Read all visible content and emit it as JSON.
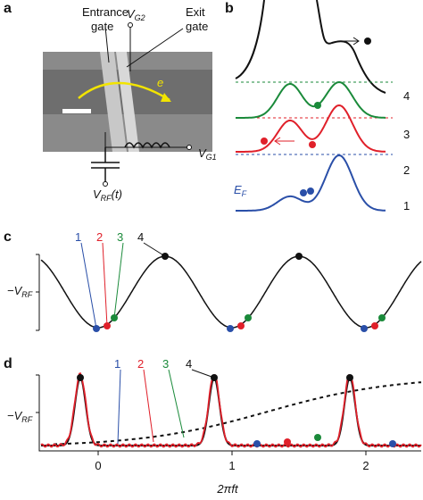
{
  "panels": {
    "a": {
      "label": "a",
      "entrance_gate": [
        "Entrance",
        "gate"
      ],
      "exit_gate": [
        "Exit",
        "gate"
      ],
      "vg2": {
        "main": "V",
        "sub": "G2"
      },
      "electron": "e",
      "vg1": {
        "main": "V",
        "sub": "G1"
      },
      "vrf": {
        "main": "V",
        "sub": "RF",
        "tail": "(t)"
      }
    },
    "b": {
      "label": "b",
      "levels": [
        "4",
        "3",
        "2",
        "1"
      ],
      "ef": {
        "main": "E",
        "sub": "F"
      }
    },
    "c": {
      "label": "c",
      "ylabel": {
        "main": "−V",
        "sub": "RF"
      },
      "numbers": [
        "1",
        "2",
        "3",
        "4"
      ]
    },
    "d": {
      "label": "d",
      "ylabel": {
        "main": "−V",
        "sub": "RF"
      },
      "numbers": [
        "1",
        "2",
        "3",
        "4"
      ],
      "xticks": [
        0,
        1,
        2
      ],
      "xlabel": "2πft"
    }
  }
}
